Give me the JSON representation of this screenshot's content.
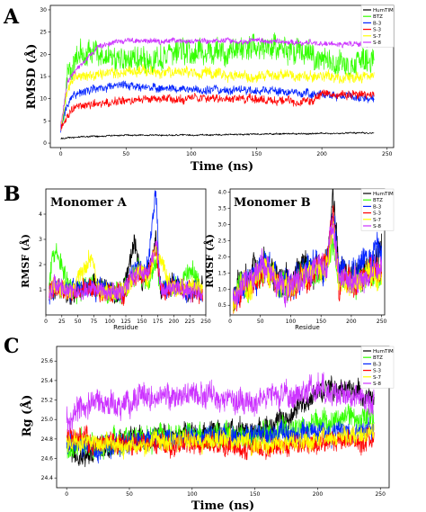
{
  "panels": [
    {
      "letter": "A"
    },
    {
      "letter": "B"
    },
    {
      "letter": "C"
    }
  ],
  "legend_names": [
    "HumTIM",
    "BTZ",
    "B-3",
    "S-3",
    "S-7",
    "S-8"
  ],
  "colors": {
    "HumTIM": "#000000",
    "BTZ": "#33ff00",
    "B-3": "#0022ff",
    "S-3": "#ff0000",
    "S-7": "#ffff00",
    "S-8": "#cc33ff"
  },
  "chart_data": [
    {
      "id": "A",
      "type": "line",
      "xlabel": "Time (ns)",
      "ylabel": "RMSD (Å)",
      "xlim": [
        -8,
        255
      ],
      "ylim": [
        -1,
        31
      ],
      "xticks": [
        0,
        50,
        100,
        150,
        200,
        250
      ],
      "yticks": [
        0,
        5,
        10,
        15,
        20,
        25,
        30
      ],
      "legend": "top-right",
      "series": [
        {
          "name": "HumTIM",
          "x": [
            0,
            5,
            20,
            50,
            100,
            150,
            200,
            240
          ],
          "y": [
            1,
            1.2,
            1.5,
            1.8,
            1.8,
            2.0,
            2.2,
            2.3
          ],
          "noise": 0.15
        },
        {
          "name": "BTZ",
          "x": [
            0,
            5,
            10,
            20,
            30,
            50,
            75,
            100,
            125,
            150,
            175,
            200,
            220,
            240
          ],
          "y": [
            3,
            15,
            18,
            21,
            20,
            19,
            19,
            21,
            20,
            22,
            21,
            19,
            17,
            19
          ],
          "noise": 2.4
        },
        {
          "name": "B-3",
          "x": [
            0,
            5,
            10,
            25,
            50,
            100,
            150,
            200,
            240
          ],
          "y": [
            3,
            9,
            11,
            12,
            13,
            12,
            12,
            11,
            10
          ],
          "noise": 0.8
        },
        {
          "name": "S-3",
          "x": [
            0,
            5,
            10,
            25,
            50,
            75,
            100,
            150,
            185,
            200,
            240
          ],
          "y": [
            3,
            6,
            8,
            9,
            9.5,
            10,
            10,
            10,
            9,
            11,
            11
          ],
          "noise": 0.8
        },
        {
          "name": "S-7",
          "x": [
            0,
            5,
            10,
            20,
            50,
            100,
            150,
            200,
            240
          ],
          "y": [
            4,
            12,
            15,
            15,
            16,
            16,
            15,
            15,
            15
          ],
          "noise": 1.0
        },
        {
          "name": "S-8",
          "x": [
            0,
            5,
            10,
            20,
            30,
            50,
            100,
            150,
            200,
            240
          ],
          "y": [
            4,
            14,
            16,
            19,
            22,
            23,
            23,
            23,
            22.5,
            22
          ],
          "noise": 0.5
        }
      ]
    },
    {
      "id": "B1",
      "type": "line",
      "title": "Monomer A",
      "xlabel": "Residue",
      "ylabel": "RMSF (Å)",
      "xlim": [
        0,
        250
      ],
      "ylim": [
        0,
        5
      ],
      "xticks": [
        0,
        25,
        50,
        75,
        100,
        125,
        150,
        175,
        200,
        225,
        250
      ],
      "yticks": [
        1,
        2,
        3,
        4
      ],
      "series": [
        {
          "name": "HumTIM",
          "x": [
            5,
            20,
            40,
            70,
            100,
            120,
            138,
            150,
            160,
            172,
            180,
            200,
            225,
            245
          ],
          "y": [
            1.0,
            1.2,
            0.8,
            1.2,
            0.9,
            0.8,
            2.9,
            1.2,
            1.8,
            3.0,
            1.0,
            1.2,
            0.9,
            1.0
          ],
          "noise": 0.35
        },
        {
          "name": "BTZ",
          "x": [
            5,
            15,
            40,
            70,
            100,
            120,
            145,
            160,
            172,
            180,
            200,
            230,
            245
          ],
          "y": [
            1.2,
            2.9,
            0.9,
            1.2,
            0.8,
            0.8,
            1.9,
            1.2,
            2.0,
            1.0,
            1.0,
            1.8,
            1.0
          ],
          "noise": 0.35
        },
        {
          "name": "B-3",
          "x": [
            5,
            20,
            40,
            70,
            100,
            120,
            140,
            155,
            162,
            172,
            178,
            200,
            225,
            245
          ],
          "y": [
            0.9,
            1.0,
            0.9,
            1.1,
            0.9,
            0.9,
            1.8,
            1.5,
            2.5,
            4.9,
            1.2,
            1.2,
            1.0,
            0.9
          ],
          "noise": 0.35
        },
        {
          "name": "S-3",
          "x": [
            5,
            20,
            40,
            70,
            100,
            120,
            140,
            160,
            172,
            180,
            200,
            225,
            245
          ],
          "y": [
            1.0,
            1.1,
            0.8,
            1.0,
            0.9,
            0.8,
            1.6,
            1.5,
            2.6,
            1.0,
            1.1,
            0.9,
            0.9
          ],
          "noise": 0.3
        },
        {
          "name": "S-7",
          "x": [
            5,
            20,
            40,
            72,
            80,
            100,
            120,
            140,
            160,
            172,
            200,
            225,
            245
          ],
          "y": [
            1.0,
            1.2,
            0.9,
            2.4,
            1.0,
            0.9,
            0.9,
            1.6,
            1.4,
            2.4,
            1.1,
            1.0,
            1.2
          ],
          "noise": 0.3
        },
        {
          "name": "S-8",
          "x": [
            5,
            20,
            40,
            70,
            100,
            120,
            140,
            160,
            172,
            180,
            200,
            225,
            245
          ],
          "y": [
            1.0,
            1.1,
            0.9,
            1.1,
            0.9,
            0.9,
            1.7,
            1.6,
            3.0,
            1.1,
            1.1,
            1.0,
            0.9
          ],
          "noise": 0.3
        }
      ]
    },
    {
      "id": "B2",
      "type": "line",
      "title": "Monomer B",
      "xlabel": "Residue",
      "ylabel": "RMSF (Å)",
      "xlim": [
        0,
        255
      ],
      "ylim": [
        0.2,
        4.1
      ],
      "xticks": [
        0,
        50,
        100,
        150,
        200,
        250
      ],
      "yticks": [
        0.5,
        1.0,
        1.5,
        2.0,
        2.5,
        3.0,
        3.5,
        4.0
      ],
      "legend": "top-right",
      "series": [
        {
          "name": "HumTIM",
          "x": [
            5,
            20,
            40,
            60,
            80,
            100,
            120,
            140,
            160,
            170,
            180,
            200,
            225,
            250
          ],
          "y": [
            0.7,
            1.2,
            1.5,
            1.8,
            1.3,
            1.2,
            1.7,
            1.6,
            1.9,
            4.0,
            1.5,
            1.4,
            1.5,
            2.2
          ],
          "noise": 0.4
        },
        {
          "name": "BTZ",
          "x": [
            5,
            20,
            40,
            60,
            80,
            100,
            120,
            140,
            160,
            170,
            180,
            200,
            225,
            250
          ],
          "y": [
            0.7,
            1.0,
            1.3,
            1.6,
            1.1,
            1.0,
            1.5,
            1.5,
            1.6,
            2.5,
            1.2,
            1.2,
            1.4,
            1.5
          ],
          "noise": 0.35
        },
        {
          "name": "B-3",
          "x": [
            5,
            20,
            40,
            60,
            80,
            100,
            120,
            140,
            160,
            170,
            180,
            200,
            225,
            250
          ],
          "y": [
            0.6,
            1.1,
            1.4,
            1.8,
            1.3,
            1.2,
            1.6,
            1.8,
            1.9,
            3.6,
            1.5,
            1.5,
            1.8,
            2.5
          ],
          "noise": 0.4
        },
        {
          "name": "S-3",
          "x": [
            5,
            20,
            40,
            60,
            80,
            100,
            120,
            140,
            160,
            170,
            180,
            200,
            225,
            250
          ],
          "y": [
            0.5,
            0.9,
            1.2,
            1.7,
            1.1,
            1.0,
            1.4,
            1.5,
            1.6,
            3.3,
            1.2,
            1.2,
            1.3,
            1.6
          ],
          "noise": 0.35
        },
        {
          "name": "S-7",
          "x": [
            5,
            20,
            40,
            60,
            80,
            100,
            120,
            140,
            160,
            170,
            180,
            200,
            225,
            250
          ],
          "y": [
            0.6,
            1.0,
            1.3,
            1.6,
            1.1,
            1.0,
            1.4,
            1.5,
            1.6,
            3.0,
            1.2,
            1.2,
            1.4,
            1.5
          ],
          "noise": 0.35
        },
        {
          "name": "S-8",
          "x": [
            5,
            20,
            40,
            60,
            80,
            100,
            120,
            140,
            160,
            170,
            180,
            200,
            225,
            250
          ],
          "y": [
            0.6,
            1.1,
            1.4,
            1.7,
            1.2,
            1.1,
            1.5,
            1.6,
            1.8,
            3.2,
            1.3,
            1.3,
            1.5,
            1.7
          ],
          "noise": 0.35
        }
      ]
    },
    {
      "id": "C",
      "type": "line",
      "xlabel": "Time (ns)",
      "ylabel": "Rg (Å)",
      "xlim": [
        -8,
        257
      ],
      "ylim": [
        24.3,
        25.75
      ],
      "xticks": [
        0,
        50,
        100,
        150,
        200,
        250
      ],
      "yticks": [
        24.4,
        24.6,
        24.8,
        25.0,
        25.2,
        25.4,
        25.6
      ],
      "legend": "top-right",
      "series": [
        {
          "name": "HumTIM",
          "x": [
            0,
            10,
            25,
            50,
            100,
            150,
            175,
            200,
            225,
            245
          ],
          "y": [
            24.75,
            24.55,
            24.7,
            24.8,
            24.85,
            24.9,
            25.0,
            25.3,
            25.3,
            25.2
          ],
          "noise": 0.09
        },
        {
          "name": "BTZ",
          "x": [
            0,
            25,
            50,
            100,
            150,
            200,
            245
          ],
          "y": [
            24.7,
            24.75,
            24.8,
            24.85,
            24.8,
            24.95,
            25.0
          ],
          "noise": 0.11
        },
        {
          "name": "B-3",
          "x": [
            0,
            25,
            50,
            100,
            150,
            200,
            245
          ],
          "y": [
            24.75,
            24.7,
            24.8,
            24.8,
            24.85,
            24.85,
            24.9
          ],
          "noise": 0.09
        },
        {
          "name": "S-3",
          "x": [
            0,
            50,
            100,
            150,
            200,
            245
          ],
          "y": [
            24.8,
            24.75,
            24.75,
            24.7,
            24.75,
            24.8
          ],
          "noise": 0.09
        },
        {
          "name": "S-7",
          "x": [
            0,
            50,
            100,
            150,
            200,
            245
          ],
          "y": [
            24.75,
            24.75,
            24.8,
            24.75,
            24.8,
            24.85
          ],
          "noise": 0.08
        },
        {
          "name": "S-8",
          "x": [
            0,
            20,
            50,
            100,
            150,
            200,
            245
          ],
          "y": [
            25.0,
            25.15,
            25.2,
            25.25,
            25.2,
            25.3,
            25.2
          ],
          "noise": 0.11
        }
      ]
    }
  ]
}
